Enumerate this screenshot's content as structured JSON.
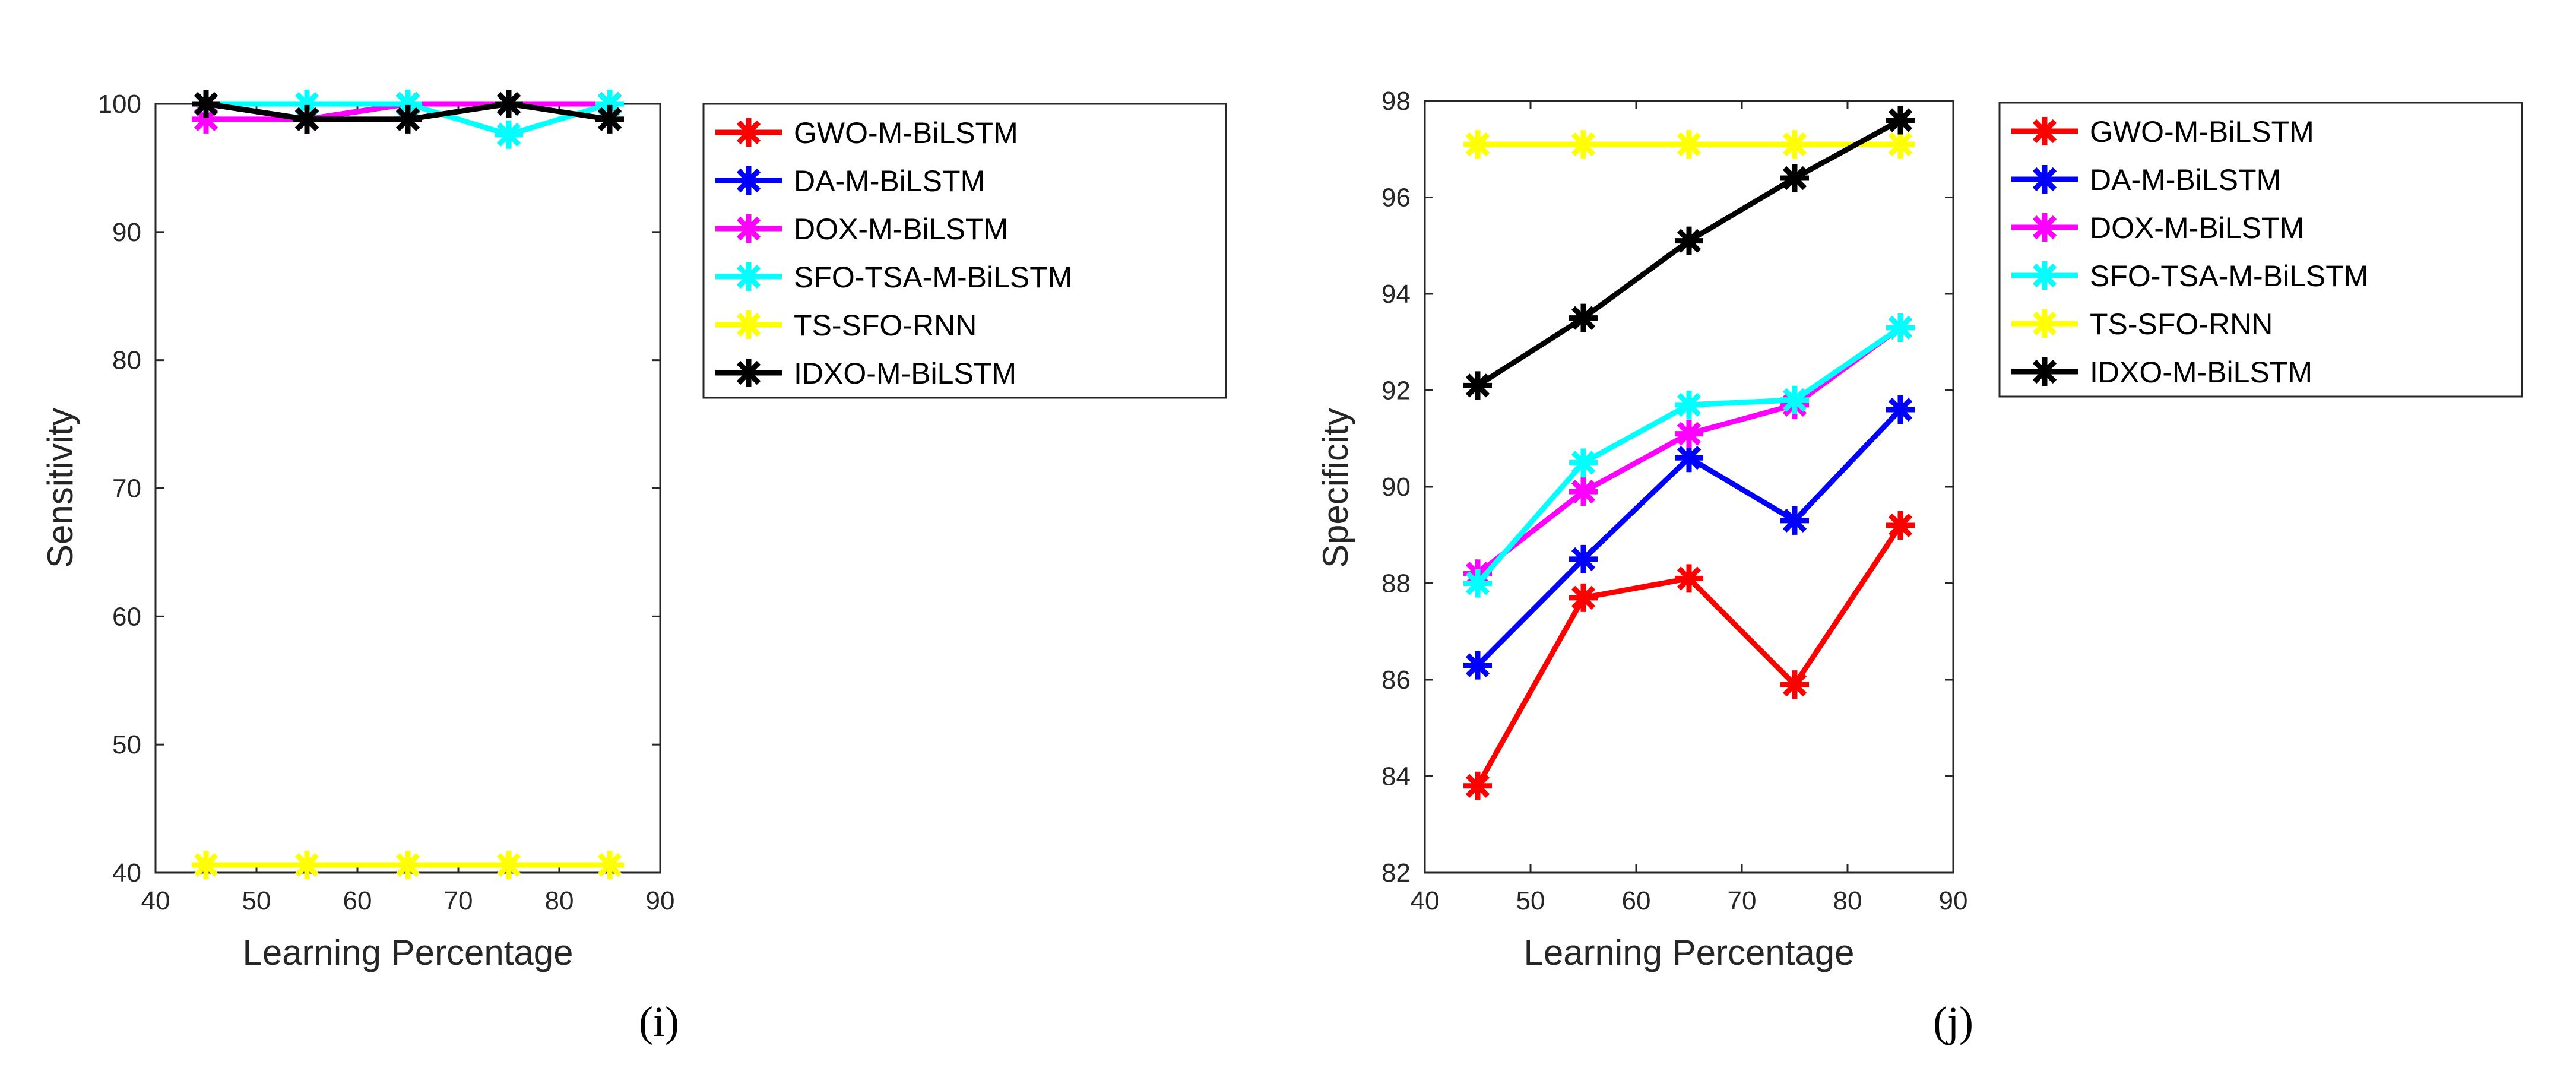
{
  "chart_data": [
    {
      "type": "line",
      "panel_label": "(i)",
      "xlabel": "Learning Percentage",
      "ylabel": "Sensitivity",
      "xlim": [
        40,
        90
      ],
      "ylim": [
        40,
        100
      ],
      "xticks": [
        40,
        50,
        60,
        70,
        80,
        90
      ],
      "yticks": [
        40,
        50,
        60,
        70,
        80,
        90,
        100
      ],
      "x": [
        45,
        55,
        65,
        75,
        85
      ],
      "legend_position": "outside-right",
      "series": [
        {
          "name": "GWO-M-BiLSTM",
          "color": "#ff0000",
          "values": [
            100,
            98.8,
            100,
            100,
            100
          ]
        },
        {
          "name": "DA-M-BiLSTM",
          "color": "#0000ff",
          "values": [
            100,
            98.8,
            100,
            100,
            100
          ]
        },
        {
          "name": "DOX-M-BiLSTM",
          "color": "#ff00ff",
          "values": [
            98.8,
            98.8,
            100,
            100,
            100
          ]
        },
        {
          "name": "SFO-TSA-M-BiLSTM",
          "color": "#00ffff",
          "values": [
            100,
            100,
            100,
            97.6,
            100
          ]
        },
        {
          "name": "TS-SFO-RNN",
          "color": "#ffff00",
          "values": [
            40.6,
            40.6,
            40.6,
            40.6,
            40.6
          ]
        },
        {
          "name": "IDXO-M-BiLSTM",
          "color": "#000000",
          "values": [
            100,
            98.8,
            98.8,
            100,
            98.8
          ]
        }
      ]
    },
    {
      "type": "line",
      "panel_label": "(j)",
      "xlabel": "Learning Percentage",
      "ylabel": "Specificity",
      "xlim": [
        40,
        90
      ],
      "ylim": [
        82,
        98
      ],
      "xticks": [
        40,
        50,
        60,
        70,
        80,
        90
      ],
      "yticks": [
        82,
        84,
        86,
        88,
        90,
        92,
        94,
        96,
        98
      ],
      "x": [
        45,
        55,
        65,
        75,
        85
      ],
      "legend_position": "outside-right",
      "series": [
        {
          "name": "GWO-M-BiLSTM",
          "color": "#ff0000",
          "values": [
            83.8,
            87.7,
            88.1,
            85.9,
            89.2
          ]
        },
        {
          "name": "DA-M-BiLSTM",
          "color": "#0000ff",
          "values": [
            86.3,
            88.5,
            90.6,
            89.3,
            91.6
          ]
        },
        {
          "name": "DOX-M-BiLSTM",
          "color": "#ff00ff",
          "values": [
            88.2,
            89.9,
            91.1,
            91.7,
            93.3
          ]
        },
        {
          "name": "SFO-TSA-M-BiLSTM",
          "color": "#00ffff",
          "values": [
            88.0,
            90.5,
            91.7,
            91.8,
            93.3
          ]
        },
        {
          "name": "TS-SFO-RNN",
          "color": "#ffff00",
          "values": [
            97.1,
            97.1,
            97.1,
            97.1,
            97.1
          ]
        },
        {
          "name": "IDXO-M-BiLSTM",
          "color": "#000000",
          "values": [
            92.1,
            93.5,
            95.1,
            96.4,
            97.6
          ]
        }
      ]
    }
  ]
}
